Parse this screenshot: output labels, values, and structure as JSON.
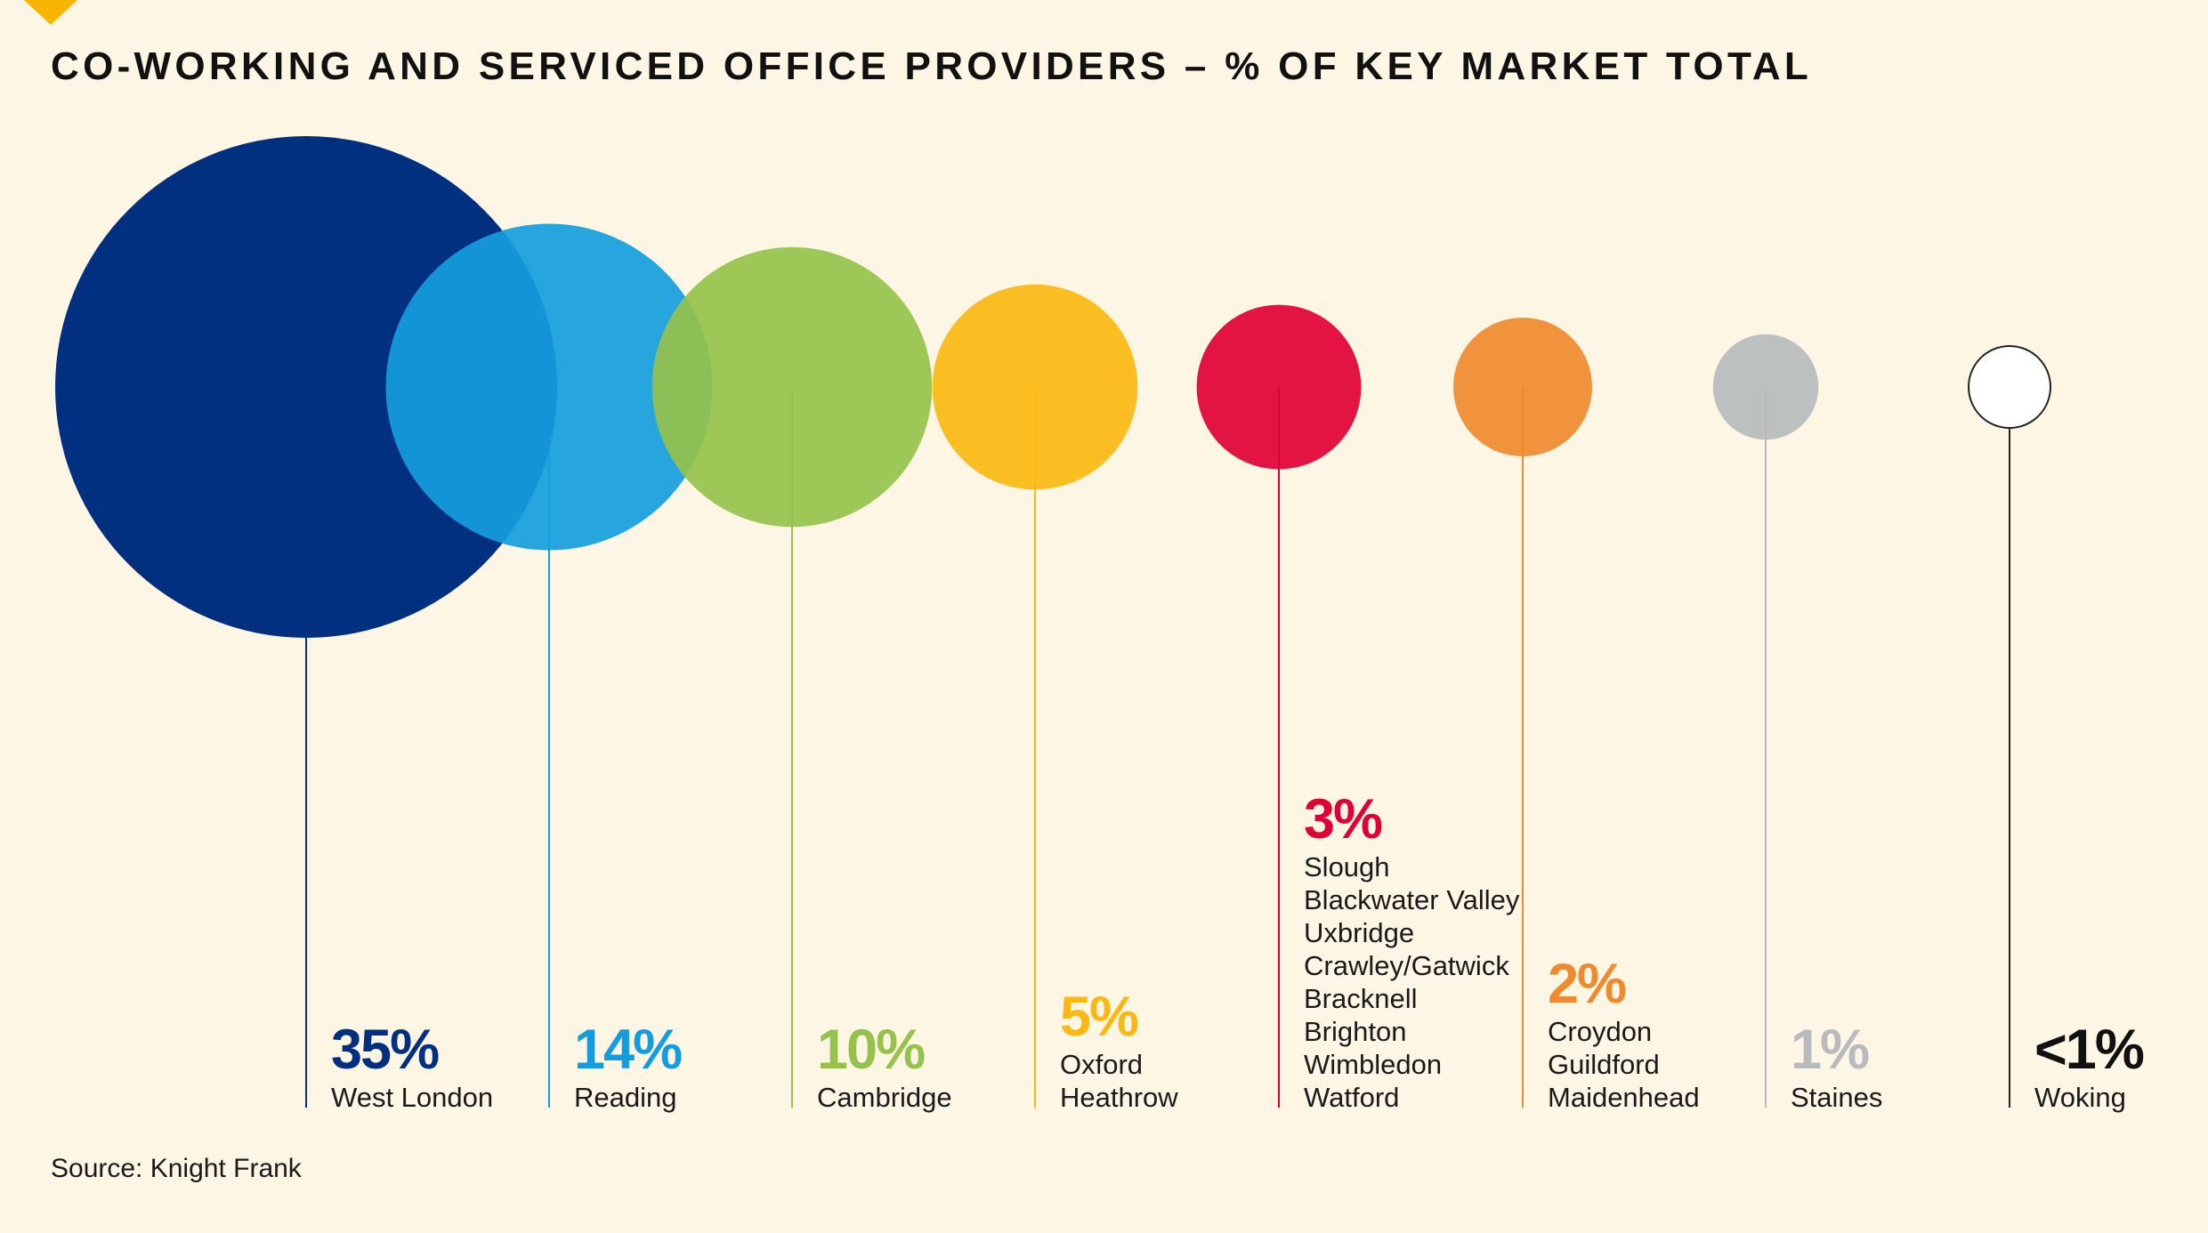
{
  "chart_data": {
    "type": "bubble",
    "title": "CO-WORKING AND SERVICED OFFICE PROVIDERS – % OF KEY MARKET TOTAL",
    "source": "Source: Knight Frank",
    "groups": [
      {
        "percent": 35,
        "label": "35%",
        "color": "#00307f",
        "locations": [
          "West London"
        ]
      },
      {
        "percent": 14,
        "label": "14%",
        "color": "#149dde",
        "locations": [
          "Reading"
        ]
      },
      {
        "percent": 10,
        "label": "10%",
        "color": "#95c24a",
        "locations": [
          "Cambridge"
        ]
      },
      {
        "percent": 5,
        "label": "5%",
        "color": "#fbb811",
        "locations": [
          "Oxford",
          "Heathrow"
        ]
      },
      {
        "percent": 3,
        "label": "3%",
        "color": "#e10034",
        "locations": [
          "Slough",
          "Blackwater Valley",
          "Uxbridge",
          "Crawley/Gatwick",
          "Bracknell",
          "Brighton",
          "Wimbledon",
          "Watford"
        ]
      },
      {
        "percent": 2,
        "label": "2%",
        "color": "#f08a2e",
        "locations": [
          "Croydon",
          "Guildford",
          "Maidenhead"
        ]
      },
      {
        "percent": 1,
        "label": "1%",
        "color": "#b7bbbd",
        "locations": [
          "Staines"
        ]
      },
      {
        "percent": 0.5,
        "label": "<1%",
        "color": "#ffffff",
        "stroke": "#222222",
        "label_color": "#111111",
        "locations": [
          "Woking"
        ]
      }
    ]
  }
}
